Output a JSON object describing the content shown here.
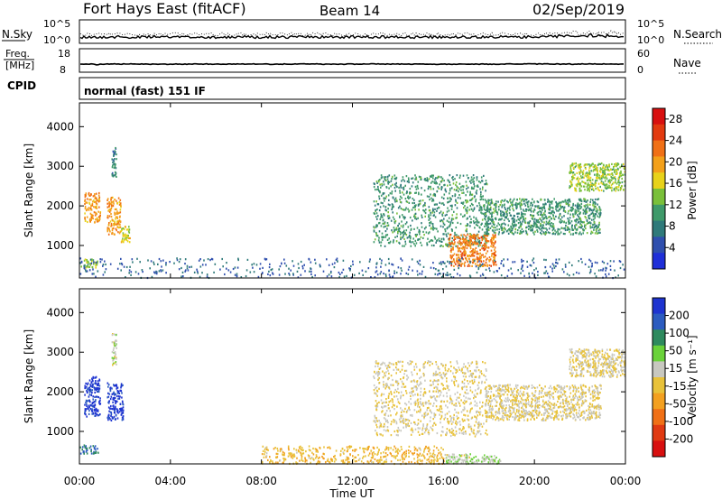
{
  "header": {
    "station": "Fort Hays East (fitACF)",
    "beam": "Beam 14",
    "date": "02/Sep/2019"
  },
  "noise_panel": {
    "left_label": "N.Sky",
    "right_label": "N.Search",
    "left_ticks": [
      "10^5",
      "10^0"
    ],
    "right_ticks": [
      "10^5",
      "10^0"
    ]
  },
  "freq_panel": {
    "left_label_1": "Freq.",
    "left_label_2": "[MHz]",
    "right_label": "Nave",
    "left_ticks": [
      "18",
      "8"
    ],
    "right_ticks": [
      "60",
      "0"
    ]
  },
  "cpid_panel": {
    "label": "CPID",
    "value": "normal (fast) 151 IF"
  },
  "colors": {
    "power_scale": [
      "#1f2fd8",
      "#2f4fae",
      "#2f7a7a",
      "#3f9a6a",
      "#7ac03a",
      "#e8d21a",
      "#f3a01a",
      "#f07016",
      "#e23a10",
      "#d81010"
    ],
    "velocity_scale": [
      "#1e34d0",
      "#2c5cc0",
      "#2e8a5e",
      "#6ad23a",
      "#c8c8c0",
      "#e8c23a",
      "#f3a020",
      "#f07016",
      "#e03a12",
      "#d81010"
    ]
  },
  "chart_data": [
    {
      "type": "heatmap",
      "name": "power",
      "xlabel": "",
      "ylabel": "Slant Range [km]",
      "x_ticks": [
        "00:00",
        "04:00",
        "08:00",
        "12:00",
        "16:00",
        "20:00",
        "00:00"
      ],
      "xlim_hours": [
        0,
        24
      ],
      "y_ticks": [
        1000,
        2000,
        3000,
        4000
      ],
      "ylim_km": [
        180,
        4600
      ],
      "colorbar": {
        "label": "Power [dB]",
        "ticks": [
          "4",
          "8",
          "12",
          "16",
          "20",
          "24",
          "28"
        ],
        "range": [
          0,
          30
        ]
      },
      "features": [
        {
          "t0": 0.0,
          "t1": 0.8,
          "r0": 460,
          "r1": 680,
          "value": 14
        },
        {
          "t0": 0.2,
          "t1": 0.9,
          "r0": 1600,
          "r1": 2350,
          "value": 20
        },
        {
          "t0": 1.2,
          "t1": 1.8,
          "r0": 1300,
          "r1": 2250,
          "value": 20
        },
        {
          "t0": 1.8,
          "t1": 2.2,
          "r0": 1100,
          "r1": 1500,
          "value": 16
        },
        {
          "t0": 1.4,
          "t1": 1.6,
          "r0": 2700,
          "r1": 3500,
          "value": 8
        },
        {
          "t0": 12.9,
          "t1": 17.9,
          "r0": 1000,
          "r1": 2800,
          "value": 10
        },
        {
          "t0": 16.2,
          "t1": 18.3,
          "r0": 500,
          "r1": 1300,
          "value": 22
        },
        {
          "t0": 17.8,
          "t1": 22.9,
          "r0": 1300,
          "r1": 2200,
          "value": 10
        },
        {
          "t0": 21.5,
          "t1": 24.0,
          "r0": 2400,
          "r1": 3100,
          "value": 14
        },
        {
          "t0": 0.0,
          "t1": 24.0,
          "r0": 200,
          "r1": 700,
          "value": 6
        }
      ]
    },
    {
      "type": "heatmap",
      "name": "velocity",
      "xlabel": "Time UT",
      "ylabel": "Slant Range [km]",
      "x_ticks": [
        "00:00",
        "04:00",
        "08:00",
        "12:00",
        "16:00",
        "20:00",
        "00:00"
      ],
      "xlim_hours": [
        0,
        24
      ],
      "y_ticks": [
        1000,
        2000,
        3000,
        4000
      ],
      "ylim_km": [
        180,
        4600
      ],
      "colorbar": {
        "label": "Velocity [m s⁻¹]",
        "ticks": [
          "200",
          "100",
          "50",
          "15",
          "-15",
          "-50",
          "-100",
          "-200"
        ],
        "range": [
          -250,
          250
        ]
      },
      "features": [
        {
          "t0": 0.0,
          "t1": 0.8,
          "r0": 460,
          "r1": 680,
          "value": 150
        },
        {
          "t0": 0.2,
          "t1": 0.9,
          "r0": 1400,
          "r1": 2400,
          "value": 220
        },
        {
          "t0": 1.2,
          "t1": 1.9,
          "r0": 1300,
          "r1": 2250,
          "value": 220
        },
        {
          "t0": 1.4,
          "t1": 1.6,
          "r0": 2700,
          "r1": 3500,
          "value": 30
        },
        {
          "t0": 12.9,
          "t1": 17.9,
          "r0": 900,
          "r1": 2800,
          "value": 0
        },
        {
          "t0": 17.8,
          "t1": 22.9,
          "r0": 1300,
          "r1": 2200,
          "value": 0
        },
        {
          "t0": 21.5,
          "t1": 24.0,
          "r0": 2400,
          "r1": 3100,
          "value": 0
        },
        {
          "t0": 8.0,
          "t1": 16.0,
          "r0": 200,
          "r1": 650,
          "value": -40
        },
        {
          "t0": 16.0,
          "t1": 18.5,
          "r0": 200,
          "r1": 450,
          "value": 40
        }
      ]
    }
  ]
}
